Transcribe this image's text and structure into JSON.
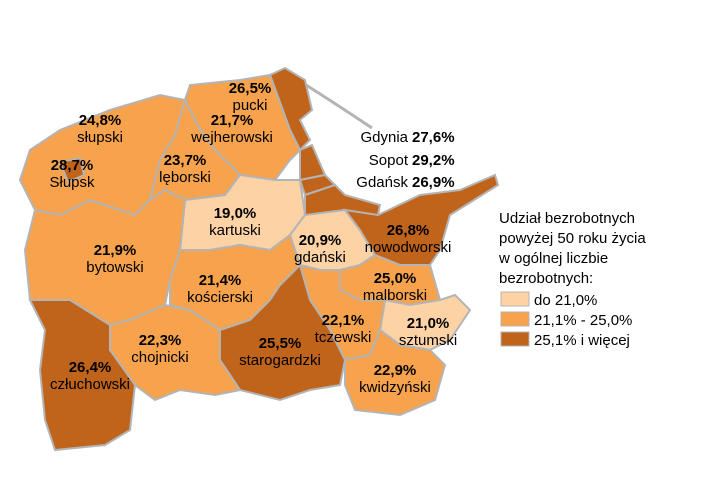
{
  "regions": [
    {
      "name": "słupski",
      "value": 24.8,
      "label": "24,8%",
      "color": "#f7a24c"
    },
    {
      "name": "Słupsk",
      "value": 28.7,
      "label": "28,7%",
      "color": "#c0641c"
    },
    {
      "name": "pucki",
      "value": 26.5,
      "label": "26,5%",
      "color": "#c0641c"
    },
    {
      "name": "wejherowski",
      "value": 21.7,
      "label": "21,7%",
      "color": "#f7a24c"
    },
    {
      "name": "lęborski",
      "value": 23.7,
      "label": "23,7%",
      "color": "#f7a24c"
    },
    {
      "name": "Gdynia",
      "value": 27.6,
      "label": "27,6%",
      "color": "#c0641c"
    },
    {
      "name": "Sopot",
      "value": 29.2,
      "label": "29,2%",
      "color": "#c0641c"
    },
    {
      "name": "Gdańsk",
      "value": 26.9,
      "label": "26,9%",
      "color": "#c0641c"
    },
    {
      "name": "kartuski",
      "value": 19.0,
      "label": "19,0%",
      "color": "#fdd3a6"
    },
    {
      "name": "bytowski",
      "value": 21.9,
      "label": "21,9%",
      "color": "#f7a24c"
    },
    {
      "name": "gdański",
      "value": 20.9,
      "label": "20,9%",
      "color": "#fdd3a6"
    },
    {
      "name": "nowodworski",
      "value": 26.8,
      "label": "26,8%",
      "color": "#c0641c"
    },
    {
      "name": "kościerski",
      "value": 21.4,
      "label": "21,4%",
      "color": "#f7a24c"
    },
    {
      "name": "malborski",
      "value": 25.0,
      "label": "25,0%",
      "color": "#f7a24c"
    },
    {
      "name": "sztumski",
      "value": 21.0,
      "label": "21,0%",
      "color": "#fdd3a6"
    },
    {
      "name": "tczewski",
      "value": 22.1,
      "label": "22,1%",
      "color": "#f7a24c"
    },
    {
      "name": "starogardzki",
      "value": 25.5,
      "label": "25,5%",
      "color": "#c0641c"
    },
    {
      "name": "chojnicki",
      "value": 22.3,
      "label": "22,3%",
      "color": "#f7a24c"
    },
    {
      "name": "człuchowski",
      "value": 26.4,
      "label": "26,4%",
      "color": "#c0641c"
    },
    {
      "name": "kwidzyński",
      "value": 22.9,
      "label": "22,9%",
      "color": "#f7a24c"
    }
  ],
  "legend": {
    "title": [
      "Udział bezrobotnych",
      "powyżej 50 roku życia",
      "w ogólnej liczbie",
      "bezrobotnych:"
    ],
    "items": [
      {
        "label": "do 21,0%",
        "color": "#fdd3a6"
      },
      {
        "label": "21,1% - 25,0%",
        "color": "#f7a24c"
      },
      {
        "label": "25,1% i więcej",
        "color": "#c0641c"
      }
    ]
  }
}
